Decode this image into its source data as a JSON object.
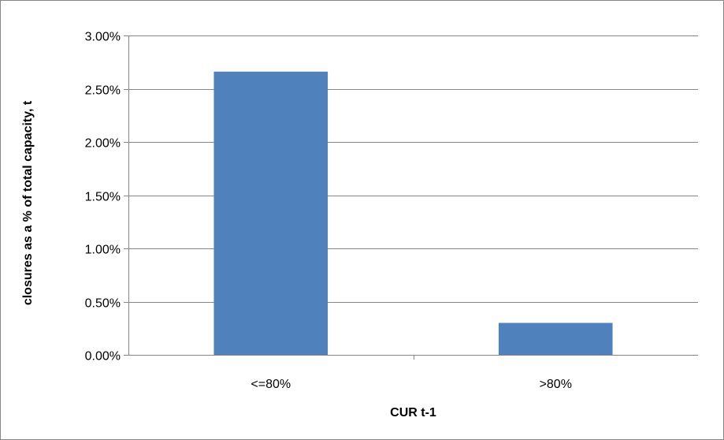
{
  "chart_data": {
    "type": "bar",
    "categories": [
      "<=80%",
      ">80%"
    ],
    "values": [
      0.0266,
      0.003
    ],
    "title": "",
    "xlabel": "CUR t-1",
    "ylabel": "closures as a % of total capacity, t",
    "ylim": [
      0,
      0.03
    ],
    "ytick_step": 0.005,
    "ytick_labels": [
      "0.00%",
      "0.50%",
      "1.00%",
      "1.50%",
      "2.00%",
      "2.50%",
      "3.00%"
    ],
    "grid": "horizontal",
    "legend": "none",
    "bar_color": "#4F81BD",
    "grid_color": "#868686"
  }
}
